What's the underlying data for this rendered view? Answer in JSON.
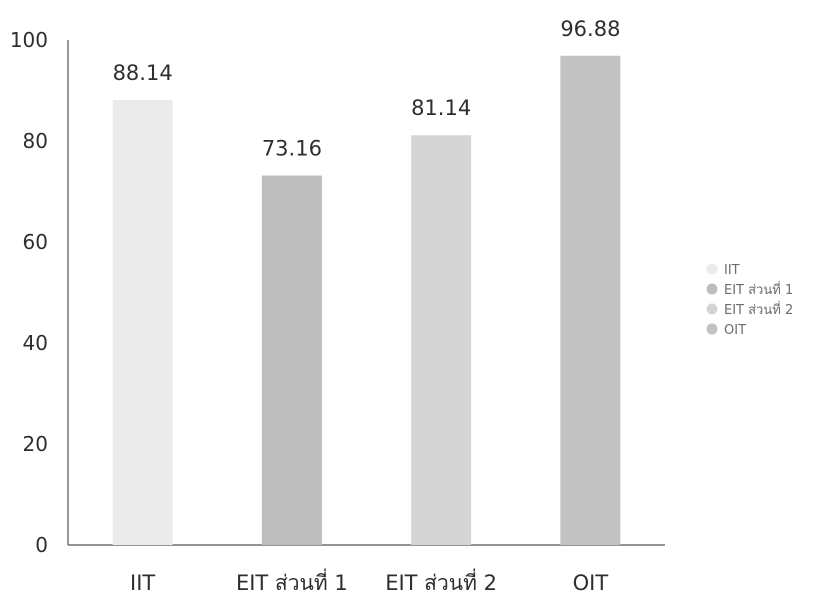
{
  "chart_data": {
    "type": "bar",
    "title": "",
    "xlabel": "",
    "ylabel": "",
    "ylim": [
      0,
      100
    ],
    "yticks": [
      0,
      20,
      40,
      60,
      80,
      100
    ],
    "grid": false,
    "legend_position": "right",
    "categories": [
      "IIT",
      "EIT ส่วนที่ 1",
      "EIT ส่วนที่ 2",
      "OIT"
    ],
    "values": [
      88.14,
      73.16,
      81.14,
      96.88
    ],
    "value_labels": [
      "88.14",
      "73.16",
      "81.14",
      "96.88"
    ],
    "colors": [
      "#ebebeb",
      "#bdbdbd",
      "#d5d5d5",
      "#c2c2c2"
    ],
    "legend": [
      "IIT",
      "EIT ส่วนที่ 1",
      "EIT ส่วนที่ 2",
      "OIT"
    ]
  }
}
